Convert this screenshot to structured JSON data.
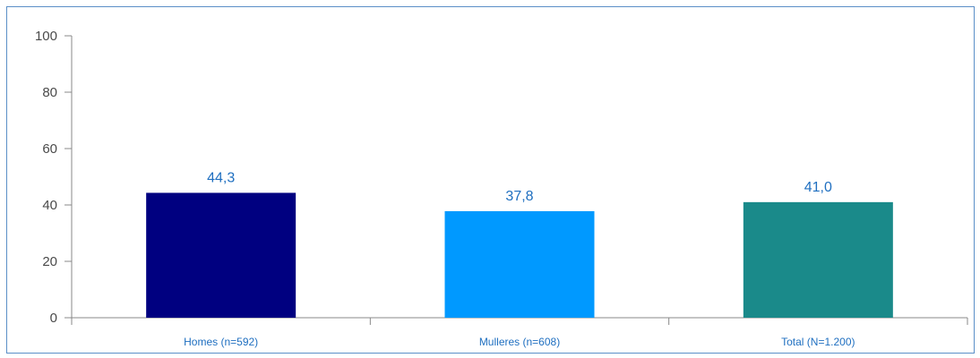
{
  "chart_data": {
    "type": "bar",
    "categories": [
      "Homes (n=592)",
      "Mulleres (n=608)",
      "Total (N=1.200)"
    ],
    "values": [
      44.3,
      37.8,
      41.0
    ],
    "value_labels": [
      "44,3",
      "37,8",
      "41,0"
    ],
    "colors": [
      "#000080",
      "#0099ff",
      "#1a8a8a"
    ],
    "title": "",
    "xlabel": "",
    "ylabel": "",
    "ylim": [
      0,
      100
    ],
    "yticks": [
      0,
      20,
      40,
      60,
      80,
      100
    ],
    "ytick_labels": [
      "0",
      "20",
      "40",
      "60",
      "80",
      "100"
    ],
    "grid": false,
    "legend": "none"
  }
}
